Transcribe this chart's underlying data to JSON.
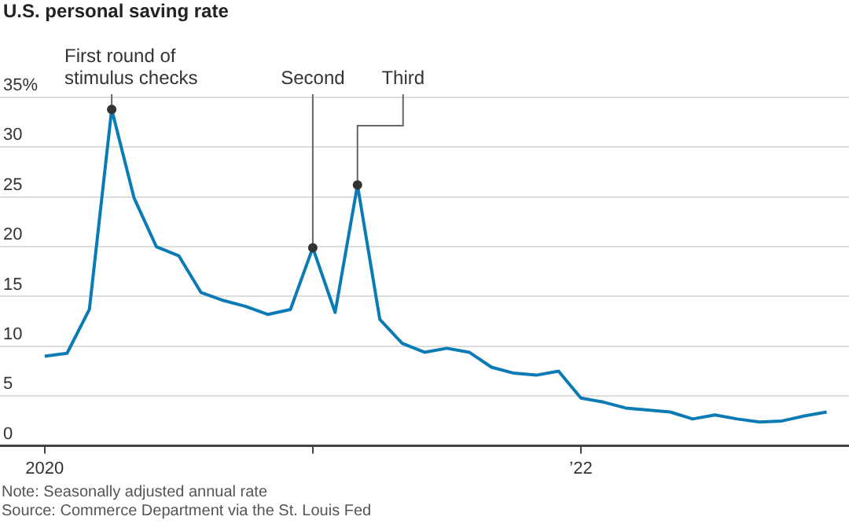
{
  "chart_data": {
    "type": "line",
    "title": "U.S. personal saving rate",
    "x": [
      "2020-01",
      "2020-02",
      "2020-03",
      "2020-04",
      "2020-05",
      "2020-06",
      "2020-07",
      "2020-08",
      "2020-09",
      "2020-10",
      "2020-11",
      "2020-12",
      "2021-01",
      "2021-02",
      "2021-03",
      "2021-04",
      "2021-05",
      "2021-06",
      "2021-07",
      "2021-08",
      "2021-09",
      "2021-10",
      "2021-11",
      "2021-12",
      "2022-01",
      "2022-02",
      "2022-03",
      "2022-04",
      "2022-05",
      "2022-06",
      "2022-07",
      "2022-08",
      "2022-09",
      "2022-10",
      "2022-11",
      "2022-12"
    ],
    "series": [
      {
        "color": "#0b7bb5",
        "values": [
          9.0,
          9.3,
          13.7,
          33.8,
          24.9,
          20.0,
          19.1,
          15.4,
          14.6,
          14.0,
          13.2,
          13.7,
          19.9,
          13.4,
          26.2,
          12.7,
          10.3,
          9.4,
          9.8,
          9.4,
          7.9,
          7.3,
          7.1,
          7.5,
          4.8,
          4.4,
          3.8,
          3.6,
          3.4,
          2.7,
          3.1,
          2.7,
          2.4,
          2.5,
          3.0,
          3.4
        ]
      }
    ],
    "xlim": [
      "2019-11",
      "2023-01"
    ],
    "xticks": [
      {
        "value": "2020-01",
        "label": "2020"
      },
      {
        "value": "2021-01",
        "label": null
      },
      {
        "value": "2022-01",
        "label": "’22"
      }
    ],
    "ylim": [
      0,
      35
    ],
    "yticks": [
      0,
      5,
      10,
      15,
      20,
      25,
      30,
      {
        "value": 35,
        "label": "35%"
      }
    ],
    "grid": "y",
    "legend": false,
    "marker": "none",
    "line_style": "solid",
    "annotations": [
      {
        "text": "First round of stimulus checks",
        "x": "2020-04",
        "y": 33.8
      },
      {
        "text": "Second",
        "x": "2021-01",
        "y": 19.9
      },
      {
        "text": "Third",
        "x": "2021-03",
        "y": 26.2
      },
      "Note: Seasonally adjusted annual rate",
      "Source: Commerce Department via the St. Louis Fed"
    ]
  }
}
